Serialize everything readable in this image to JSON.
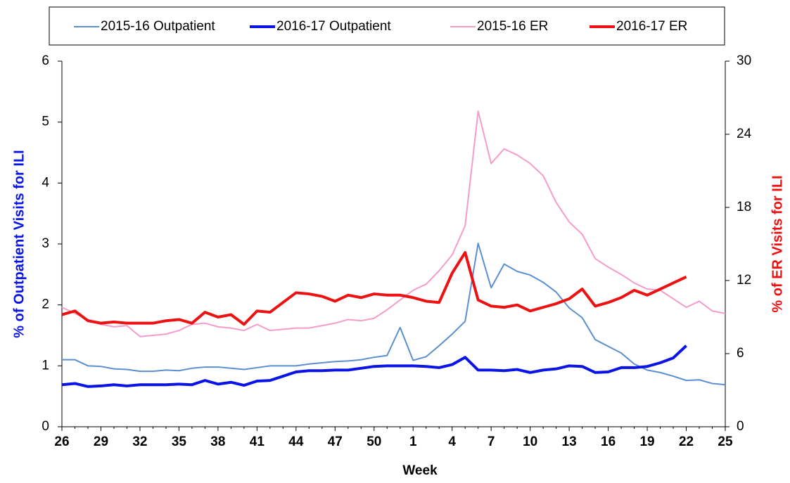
{
  "chart_data": {
    "type": "line",
    "x_label": "Week",
    "y_label": "% of Outpatient Visits for ILI",
    "y2_label": "% of ER Visits for ILI",
    "categories": [
      "26",
      null,
      null,
      "29",
      null,
      null,
      "32",
      null,
      null,
      "35",
      null,
      null,
      "38",
      null,
      null,
      "41",
      null,
      null,
      "44",
      null,
      null,
      "47",
      null,
      null,
      "50",
      null,
      null,
      "1",
      null,
      null,
      "4",
      null,
      null,
      "7",
      null,
      null,
      "10",
      null,
      null,
      "13",
      null,
      null,
      "16",
      null,
      null,
      "19",
      null,
      null,
      "22",
      null,
      null,
      "25"
    ],
    "ylim": [
      0,
      6
    ],
    "yticks": [
      0,
      1,
      2,
      3,
      4,
      5,
      6
    ],
    "y2lim": [
      0,
      30
    ],
    "y2ticks": [
      0,
      6,
      12,
      18,
      24,
      30
    ],
    "legend": "top",
    "series": [
      {
        "name": "2015-16 Outpatient",
        "color": "#5b8fd0",
        "line_width": 2,
        "values": [
          1.1,
          1.1,
          1.0,
          0.99,
          0.95,
          0.94,
          0.91,
          0.91,
          0.93,
          0.92,
          0.96,
          0.98,
          0.98,
          0.96,
          0.94,
          0.97,
          1.0,
          1.0,
          1.0,
          1.03,
          1.05,
          1.07,
          1.08,
          1.1,
          1.14,
          1.17,
          1.63,
          1.09,
          1.15,
          1.33,
          1.52,
          1.73,
          3.01,
          2.28,
          2.67,
          2.55,
          2.49,
          2.37,
          2.21,
          1.95,
          1.79,
          1.43,
          1.32,
          1.21,
          1.03,
          0.93,
          0.89,
          0.83,
          0.76,
          0.77,
          0.71,
          0.69
        ]
      },
      {
        "name": "2016-17 Outpatient",
        "color": "#0a14e6",
        "line_width": 4,
        "values": [
          0.69,
          0.71,
          0.66,
          0.67,
          0.69,
          0.67,
          0.69,
          0.69,
          0.69,
          0.7,
          0.69,
          0.76,
          0.7,
          0.73,
          0.68,
          0.75,
          0.76,
          0.83,
          0.9,
          0.92,
          0.92,
          0.93,
          0.93,
          0.96,
          0.99,
          1.0,
          1.0,
          1.0,
          0.99,
          0.97,
          1.02,
          1.14,
          0.93,
          0.93,
          0.92,
          0.94,
          0.89,
          0.93,
          0.95,
          1.0,
          0.99,
          0.89,
          0.9,
          0.97,
          0.97,
          0.99,
          1.05,
          1.13,
          1.33,
          null,
          null,
          null
        ]
      },
      {
        "name": "2015-16 ER",
        "color": "#f59ccb",
        "line_width": 2,
        "axis": "y2",
        "values": [
          9.8,
          9.3,
          8.8,
          8.4,
          8.2,
          8.3,
          7.4,
          7.5,
          7.6,
          7.9,
          8.4,
          8.5,
          8.2,
          8.1,
          7.9,
          8.4,
          7.9,
          8.0,
          8.1,
          8.1,
          8.3,
          8.5,
          8.8,
          8.7,
          8.9,
          9.6,
          10.4,
          11.2,
          11.7,
          12.8,
          14.1,
          16.5,
          25.9,
          21.6,
          22.8,
          22.3,
          21.6,
          20.6,
          18.4,
          16.8,
          15.8,
          13.8,
          13.1,
          12.5,
          11.8,
          11.3,
          11.2,
          10.5,
          9.8,
          10.3,
          9.5,
          9.3
        ]
      },
      {
        "name": "2016-17 ER",
        "color": "#ee1111",
        "line_width": 4,
        "axis": "y2",
        "values": [
          9.2,
          9.5,
          8.7,
          8.5,
          8.6,
          8.5,
          8.5,
          8.5,
          8.7,
          8.8,
          8.5,
          9.4,
          9.0,
          9.2,
          8.4,
          9.5,
          9.4,
          10.2,
          11.0,
          10.9,
          10.7,
          10.3,
          10.8,
          10.6,
          10.9,
          10.8,
          10.8,
          10.6,
          10.3,
          10.2,
          12.6,
          14.3,
          10.4,
          9.9,
          9.8,
          10.0,
          9.5,
          9.8,
          10.1,
          10.5,
          11.3,
          9.9,
          10.2,
          10.6,
          11.2,
          10.8,
          11.3,
          11.8,
          12.3,
          null,
          null,
          null
        ]
      }
    ]
  }
}
